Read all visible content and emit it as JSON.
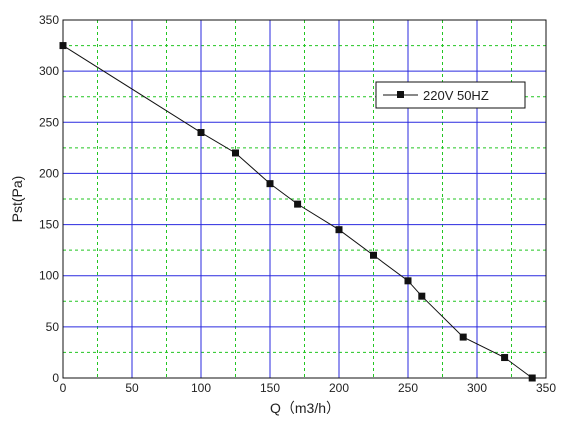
{
  "chart_data": {
    "type": "line",
    "title": "",
    "xlabel": "Q（m3/h）",
    "ylabel": "Pst(Pa)",
    "xlim": [
      0,
      350
    ],
    "ylim": [
      0,
      350
    ],
    "x_ticks": [
      0,
      50,
      100,
      150,
      200,
      250,
      300,
      350
    ],
    "y_ticks": [
      0,
      50,
      100,
      150,
      200,
      250,
      300,
      350
    ],
    "x_tick_labels": [
      "0",
      "50",
      "100",
      "150",
      "200",
      "250",
      "300",
      "350"
    ],
    "y_tick_labels": [
      "0",
      "50",
      "100",
      "150",
      "200",
      "250",
      "300",
      "350"
    ],
    "grid": {
      "major": true,
      "minor": true,
      "major_color": "#2a2adf",
      "minor_color": "#22c522",
      "minor_style": "dashed"
    },
    "legend_position": "top-right",
    "series": [
      {
        "name": "220V 50HZ",
        "color": "#111111",
        "marker": "square",
        "x": [
          0,
          100,
          125,
          150,
          170,
          200,
          225,
          250,
          260,
          290,
          320,
          340
        ],
        "y": [
          325,
          240,
          220,
          190,
          170,
          145,
          120,
          95,
          80,
          40,
          20,
          0
        ]
      }
    ]
  }
}
